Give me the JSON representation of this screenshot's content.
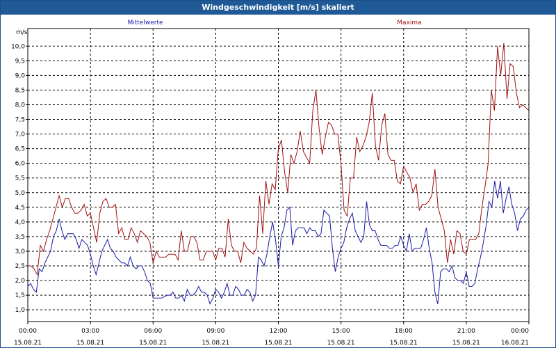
{
  "window": {
    "title": "Windgeschwindigkeit [m/s] skaliert"
  },
  "colors": {
    "mittelwerte": "#1a1aa8",
    "maxima": "#a01010",
    "title_bar": "#1f5a96",
    "grid": "#000000"
  },
  "chart_data": {
    "type": "line",
    "title": "Windgeschwindigkeit [m/s] skaliert",
    "ylabel": "m/s",
    "xlabel": "",
    "ylim": [
      0.6,
      10.6
    ],
    "xlim": [
      "15.08.21 00:00",
      "16.08.21 00:00"
    ],
    "grid": true,
    "legend": "top",
    "y_ticks": [
      "1,0",
      "1,5",
      "2,0",
      "2,5",
      "3,0",
      "3,5",
      "4,0",
      "4,5",
      "5,0",
      "5,5",
      "6,0",
      "6,5",
      "7,0",
      "7,5",
      "8,0",
      "8,5",
      "9,0",
      "9,5",
      "10,0"
    ],
    "x_ticks": [
      {
        "time": "00:00",
        "date": "15.08.21"
      },
      {
        "time": "03:00",
        "date": "15.08.21"
      },
      {
        "time": "06:00",
        "date": "15.08.21"
      },
      {
        "time": "09:00",
        "date": "15.08.21"
      },
      {
        "time": "12:00",
        "date": "15.08.21"
      },
      {
        "time": "15:00",
        "date": "15.08.21"
      },
      {
        "time": "18:00",
        "date": "15.08.21"
      },
      {
        "time": "21:00",
        "date": "15.08.21"
      },
      {
        "time": "00:00",
        "date": "16.08.21"
      }
    ],
    "interval_minutes": 10,
    "series": [
      {
        "name": "Mittelwerte",
        "values": [
          1.8,
          1.9,
          1.7,
          1.6,
          2.4,
          2.3,
          2.6,
          2.8,
          3.0,
          3.5,
          3.7,
          4.1,
          3.7,
          3.4,
          3.6,
          3.6,
          3.6,
          3.4,
          3.1,
          3.4,
          3.3,
          3.2,
          2.9,
          2.5,
          2.2,
          2.6,
          3.0,
          3.2,
          3.4,
          3.1,
          3.0,
          2.8,
          2.7,
          2.6,
          2.6,
          2.5,
          2.8,
          2.5,
          2.4,
          2.5,
          2.5,
          2.3,
          2.0,
          1.9,
          1.4,
          1.4,
          1.4,
          1.4,
          1.45,
          1.5,
          1.5,
          1.6,
          1.4,
          1.4,
          1.5,
          1.3,
          1.7,
          1.5,
          1.5,
          1.6,
          1.8,
          1.6,
          1.6,
          1.5,
          1.2,
          1.4,
          1.7,
          1.6,
          1.4,
          1.6,
          1.9,
          1.5,
          1.5,
          1.8,
          1.7,
          1.5,
          1.5,
          1.7,
          1.6,
          1.3,
          1.5,
          2.8,
          2.7,
          2.5,
          2.9,
          3.5,
          4.0,
          3.4,
          2.5,
          3.5,
          3.8,
          4.4,
          4.5,
          3.2,
          3.7,
          3.8,
          3.8,
          3.8,
          3.6,
          3.8,
          3.7,
          3.7,
          3.5,
          3.6,
          4.4,
          4.3,
          4.2,
          3.1,
          2.3,
          2.8,
          3.1,
          3.3,
          3.8,
          4.1,
          4.3,
          3.7,
          3.5,
          3.3,
          3.5,
          4.7,
          3.9,
          3.7,
          3.7,
          3.4,
          3.2,
          3.2,
          3.2,
          3.1,
          3.1,
          3.2,
          3.2,
          3.5,
          3.2,
          3.0,
          3.6,
          3.0,
          3.1,
          3.1,
          3.1,
          3.4,
          3.8,
          3.1,
          2.6,
          1.6,
          1.2,
          2.3,
          2.4,
          2.4,
          2.3,
          2.5,
          2.1,
          2.0,
          2.0,
          1.9,
          2.3,
          1.8,
          1.8,
          1.9,
          2.4,
          2.8,
          3.3,
          3.9,
          4.7,
          4.5,
          5.4,
          4.8,
          5.4,
          4.3,
          4.8,
          5.2,
          4.6,
          4.3,
          3.7,
          4.1,
          4.2,
          4.4,
          4.5
        ]
      },
      {
        "name": "Maxima",
        "values": [
          2.5,
          2.5,
          2.4,
          2.2,
          3.2,
          3.0,
          3.4,
          3.7,
          4.1,
          4.5,
          4.9,
          4.5,
          4.8,
          4.8,
          4.5,
          4.3,
          4.3,
          4.4,
          4.6,
          4.2,
          4.3,
          3.8,
          3.3,
          4.3,
          4.7,
          4.8,
          4.5,
          4.5,
          4.6,
          3.6,
          3.8,
          3.4,
          3.4,
          3.8,
          3.6,
          3.3,
          3.7,
          3.6,
          3.5,
          3.3,
          2.6,
          3.0,
          2.8,
          2.8,
          2.8,
          2.9,
          2.9,
          2.9,
          2.7,
          3.7,
          3.0,
          3.0,
          3.5,
          3.5,
          3.3,
          2.7,
          2.7,
          3.0,
          3.0,
          3.0,
          2.7,
          3.1,
          3.1,
          2.8,
          4.1,
          3.2,
          3.0,
          3.0,
          2.6,
          3.3,
          3.1,
          3.0,
          2.9,
          3.1,
          4.9,
          3.6,
          5.4,
          4.6,
          5.3,
          5.1,
          6.5,
          6.8,
          5.7,
          5.0,
          6.3,
          6.0,
          6.4,
          7.1,
          6.4,
          6.2,
          6.0,
          7.8,
          8.5,
          7.2,
          6.3,
          6.9,
          7.4,
          7.3,
          7.0,
          7.0,
          6.0,
          4.4,
          4.2,
          5.5,
          5.5,
          6.9,
          6.4,
          6.6,
          6.9,
          7.4,
          8.4,
          6.6,
          6.1,
          7.3,
          7.7,
          6.3,
          6.1,
          6.1,
          5.4,
          5.3,
          5.9,
          5.7,
          5.5,
          5.0,
          5.3,
          4.4,
          4.6,
          4.6,
          4.7,
          4.9,
          5.8,
          4.5,
          4.1,
          3.7,
          2.6,
          3.4,
          2.9,
          3.7,
          3.6,
          3.0,
          2.9,
          3.4,
          3.4,
          3.4,
          3.6,
          4.5,
          5.2,
          6.0,
          8.5,
          7.8,
          10.0,
          9.0,
          10.1,
          8.2,
          9.4,
          9.3,
          8.4,
          7.9,
          8.0,
          7.9,
          7.8
        ]
      }
    ]
  }
}
